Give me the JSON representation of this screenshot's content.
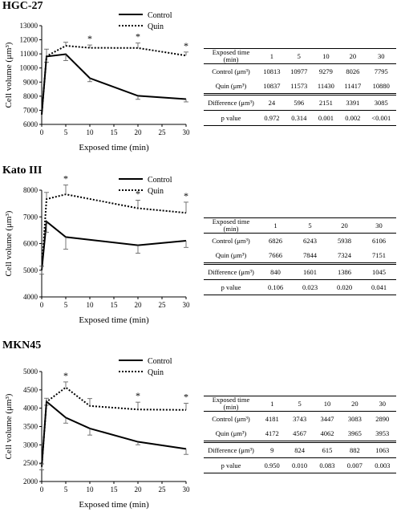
{
  "chart_data": [
    {
      "type": "line",
      "title": "HGC-27",
      "xlabel": "Exposed time (min)",
      "ylabel": "Cell volume (μm³)",
      "xlim": [
        0,
        30
      ],
      "ylim": [
        6000,
        13000
      ],
      "yticks": [
        6000,
        7000,
        8000,
        9000,
        10000,
        11000,
        12000,
        13000
      ],
      "xticks": [
        0,
        5,
        10,
        15,
        20,
        25,
        30
      ],
      "legend_position": "top-right",
      "x": [
        0,
        1,
        5,
        10,
        20,
        30
      ],
      "series": [
        {
          "name": "Control",
          "style": "solid",
          "values": [
            6700,
            10813,
            10977,
            9279,
            8026,
            7795
          ],
          "errors": [
            0,
            400,
            450,
            250,
            250,
            200
          ]
        },
        {
          "name": "Quin",
          "style": "dotted",
          "values": [
            6700,
            10837,
            11573,
            11430,
            11417,
            10880
          ],
          "errors": [
            0,
            500,
            250,
            200,
            350,
            250
          ]
        }
      ],
      "significance": [
        {
          "x": 10,
          "label": "*"
        },
        {
          "x": 20,
          "label": "*"
        },
        {
          "x": 30,
          "label": "*"
        }
      ],
      "table": {
        "header_label": "Exposed time (min)",
        "columns": [
          "1",
          "5",
          "10",
          "20",
          "30"
        ],
        "rows": [
          {
            "label": "Control (μm³)",
            "values": [
              "10813",
              "10977",
              "9279",
              "8026",
              "7795"
            ]
          },
          {
            "label": "Quin (μm³)",
            "values": [
              "10837",
              "11573",
              "11430",
              "11417",
              "10880"
            ]
          },
          {
            "label": "Difference (μm³)",
            "values": [
              "24",
              "596",
              "2151",
              "3391",
              "3085"
            ]
          },
          {
            "label": "p value",
            "values": [
              "0.972",
              "0.314",
              "0.001",
              "0.002",
              "<0.001"
            ]
          }
        ]
      }
    },
    {
      "type": "line",
      "title": "Kato III",
      "xlabel": "Exposed time (min)",
      "ylabel": "Cell volume (μm³)",
      "xlim": [
        0,
        30
      ],
      "ylim": [
        4000,
        8000
      ],
      "yticks": [
        4000,
        5000,
        6000,
        7000,
        8000
      ],
      "xticks": [
        0,
        5,
        10,
        15,
        20,
        25,
        30
      ],
      "legend_position": "top-right",
      "x": [
        0,
        1,
        5,
        20,
        30
      ],
      "series": [
        {
          "name": "Control",
          "style": "solid",
          "values": [
            5000,
            6826,
            6243,
            5938,
            6106
          ],
          "errors": [
            150,
            400,
            450,
            300,
            250
          ]
        },
        {
          "name": "Quin",
          "style": "dotted",
          "values": [
            5000,
            7666,
            7844,
            7324,
            7151
          ],
          "errors": [
            150,
            250,
            350,
            300,
            400
          ]
        }
      ],
      "significance": [
        {
          "x": 5,
          "label": "*"
        },
        {
          "x": 20,
          "label": "*"
        },
        {
          "x": 30,
          "label": "*"
        }
      ],
      "table": {
        "header_label": "Exposed time (min)",
        "columns": [
          "1",
          "5",
          "20",
          "30"
        ],
        "rows": [
          {
            "label": "Control (μm³)",
            "values": [
              "6826",
              "6243",
              "5938",
              "6106"
            ]
          },
          {
            "label": "Quin (μm³)",
            "values": [
              "7666",
              "7844",
              "7324",
              "7151"
            ]
          },
          {
            "label": "Difference (μm³)",
            "values": [
              "840",
              "1601",
              "1386",
              "1045"
            ]
          },
          {
            "label": "p value",
            "values": [
              "0.106",
              "0.023",
              "0.020",
              "0.041"
            ]
          }
        ]
      }
    },
    {
      "type": "line",
      "title": "MKN45",
      "xlabel": "Exposed time (min)",
      "ylabel": "Cell volume (μm³)",
      "xlim": [
        0,
        30
      ],
      "ylim": [
        2000,
        5000
      ],
      "yticks": [
        2000,
        2500,
        3000,
        3500,
        4000,
        4500,
        5000
      ],
      "xticks": [
        0,
        5,
        10,
        15,
        20,
        25,
        30
      ],
      "legend_position": "top-right",
      "x": [
        0,
        1,
        5,
        10,
        20,
        30
      ],
      "series": [
        {
          "name": "Control",
          "style": "solid",
          "values": [
            2400,
            4181,
            3743,
            3447,
            3083,
            2890
          ],
          "errors": [
            80,
            100,
            150,
            180,
            80,
            150
          ]
        },
        {
          "name": "Quin",
          "style": "dotted",
          "values": [
            2400,
            4172,
            4567,
            4062,
            3965,
            3953
          ],
          "errors": [
            80,
            100,
            150,
            200,
            200,
            180
          ]
        }
      ],
      "significance": [
        {
          "x": 5,
          "label": "*"
        },
        {
          "x": 20,
          "label": "*"
        },
        {
          "x": 30,
          "label": "*"
        }
      ],
      "table": {
        "header_label": "Exposed time (min)",
        "columns": [
          "1",
          "5",
          "10",
          "20",
          "30"
        ],
        "rows": [
          {
            "label": "Control (μm³)",
            "values": [
              "4181",
              "3743",
              "3447",
              "3083",
              "2890"
            ]
          },
          {
            "label": "Quin (μm³)",
            "values": [
              "4172",
              "4567",
              "4062",
              "3965",
              "3953"
            ]
          },
          {
            "label": "Difference (μm³)",
            "values": [
              "9",
              "824",
              "615",
              "882",
              "1063"
            ]
          },
          {
            "label": "p value",
            "values": [
              "0.950",
              "0.010",
              "0.083",
              "0.007",
              "0.003"
            ]
          }
        ]
      }
    }
  ]
}
